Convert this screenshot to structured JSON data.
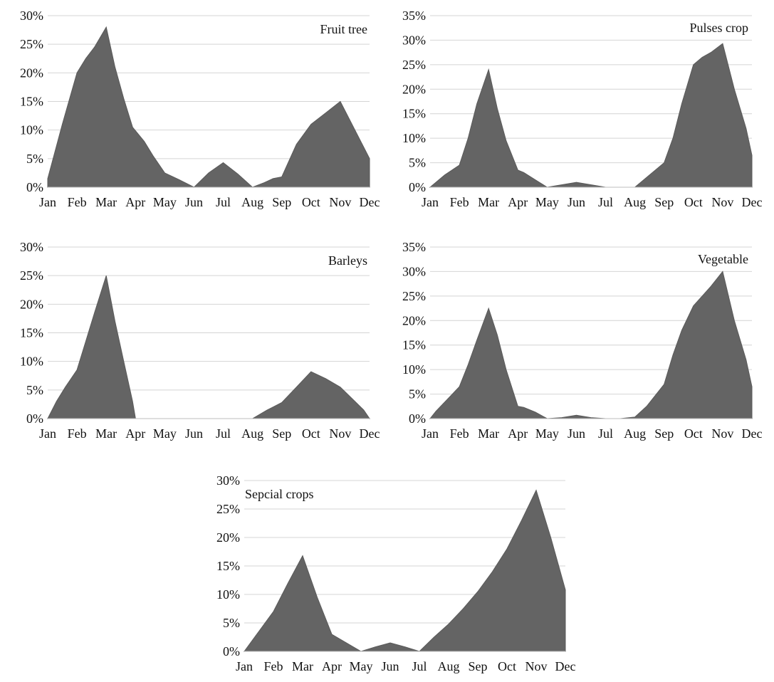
{
  "chart_data": [
    {
      "type": "area",
      "title": "Fruit tree",
      "xlabel": "",
      "ylabel": "",
      "ylim": [
        0,
        30
      ],
      "yticks": [
        "0%",
        "5%",
        "10%",
        "15%",
        "20%",
        "25%",
        "30%"
      ],
      "categories": [
        "Jan",
        "Feb",
        "Mar",
        "Apr",
        "May",
        "Jun",
        "Jul",
        "Aug",
        "Sep",
        "Oct",
        "Nov",
        "Dec"
      ],
      "x": [
        0,
        0.5,
        1,
        1.3,
        1.6,
        2,
        2.3,
        2.6,
        2.9,
        3.3,
        3.6,
        4,
        4.5,
        5,
        5.5,
        6,
        6.5,
        7,
        7.4,
        7.7,
        8,
        8.5,
        9,
        9.5,
        10,
        10.5,
        11
      ],
      "values": [
        1.5,
        11,
        20,
        22.5,
        24.5,
        28,
        21,
        15.5,
        10.5,
        8,
        5.5,
        2.5,
        1.3,
        0,
        2.5,
        4.3,
        2.3,
        0,
        0.8,
        1.5,
        1.8,
        7.5,
        11,
        13,
        15,
        10,
        5
      ]
    },
    {
      "type": "area",
      "title": "Pulses crop",
      "xlabel": "",
      "ylabel": "",
      "ylim": [
        0,
        35
      ],
      "yticks": [
        "0%",
        "5%",
        "10%",
        "15%",
        "20%",
        "25%",
        "30%",
        "35%"
      ],
      "categories": [
        "Jan",
        "Feb",
        "Mar",
        "Apr",
        "May",
        "Jun",
        "Jul",
        "Aug",
        "Sep",
        "Oct",
        "Nov",
        "Dec"
      ],
      "x": [
        0,
        0.5,
        1,
        1.3,
        1.6,
        2,
        2.3,
        2.6,
        3,
        3.2,
        3.6,
        4,
        5,
        6,
        7,
        7.5,
        8,
        8.3,
        8.6,
        9,
        9.3,
        9.6,
        10,
        10.4,
        10.8,
        11
      ],
      "values": [
        0,
        2.5,
        4.5,
        10,
        17,
        24,
        16,
        9.5,
        3.5,
        3,
        1.5,
        0,
        1,
        0,
        0,
        2.5,
        5,
        10,
        17,
        25,
        26.5,
        27.5,
        29.3,
        20,
        12,
        6.5
      ]
    },
    {
      "type": "area",
      "title": "Barleys",
      "xlabel": "",
      "ylabel": "",
      "ylim": [
        0,
        30
      ],
      "yticks": [
        "0%",
        "5%",
        "10%",
        "15%",
        "20%",
        "25%",
        "30%"
      ],
      "categories": [
        "Jan",
        "Feb",
        "Mar",
        "Apr",
        "May",
        "Jun",
        "Jul",
        "Aug",
        "Sep",
        "Oct",
        "Nov",
        "Dec"
      ],
      "x": [
        0,
        0.3,
        0.6,
        1,
        1.3,
        1.6,
        2,
        2.3,
        2.6,
        2.9,
        3,
        4,
        5,
        6,
        7,
        7.5,
        8,
        8.5,
        9,
        9.5,
        10,
        10.5,
        10.8,
        11
      ],
      "values": [
        0,
        3,
        5.5,
        8.5,
        13.5,
        18.5,
        25,
        17,
        10,
        3,
        0,
        0,
        0,
        0,
        0,
        1.5,
        2.8,
        5.5,
        8.2,
        7,
        5.5,
        3,
        1.5,
        0
      ]
    },
    {
      "type": "area",
      "title": "Vegetable",
      "xlabel": "",
      "ylabel": "",
      "ylim": [
        0,
        35
      ],
      "yticks": [
        "0%",
        "5%",
        "10%",
        "15%",
        "20%",
        "25%",
        "30%",
        "35%"
      ],
      "categories": [
        "Jan",
        "Feb",
        "Mar",
        "Apr",
        "May",
        "Jun",
        "Jul",
        "Aug",
        "Sep",
        "Oct",
        "Nov",
        "Dec"
      ],
      "x": [
        0,
        0.2,
        0.6,
        1,
        1.3,
        1.6,
        2,
        2.3,
        2.6,
        3,
        3.2,
        3.6,
        4,
        4.5,
        5,
        5.5,
        6,
        6.5,
        7,
        7.4,
        8,
        8.3,
        8.6,
        9,
        9.3,
        9.6,
        10,
        10.4,
        10.8,
        11
      ],
      "values": [
        0,
        1.5,
        4,
        6.5,
        11,
        16,
        22.5,
        17,
        10,
        2.5,
        2.3,
        1.3,
        0,
        0.2,
        0.7,
        0.2,
        0,
        0,
        0.3,
        2.5,
        7,
        13,
        18,
        23,
        25,
        27,
        30,
        20,
        12,
        6.5
      ]
    },
    {
      "type": "area",
      "title": "Sepcial crops",
      "xlabel": "",
      "ylabel": "",
      "ylim": [
        0,
        30
      ],
      "yticks": [
        "0%",
        "5%",
        "10%",
        "15%",
        "20%",
        "25%",
        "30%"
      ],
      "categories": [
        "Jan",
        "Feb",
        "Mar",
        "Apr",
        "May",
        "Jun",
        "Jul",
        "Aug",
        "Sep",
        "Oct",
        "Nov",
        "Dec"
      ],
      "x": [
        0,
        0.5,
        1,
        1.5,
        2,
        2.5,
        3,
        3.5,
        4,
        4.5,
        5,
        5.5,
        6,
        6.5,
        7,
        7.5,
        8,
        8.5,
        9,
        9.5,
        10,
        10.5,
        11
      ],
      "values": [
        0,
        3.5,
        7,
        12,
        16.8,
        9.5,
        3,
        1.5,
        0,
        0.8,
        1.5,
        0.8,
        0,
        2.5,
        4.8,
        7.5,
        10.5,
        14,
        18,
        23,
        28.3,
        20,
        10.8
      ]
    }
  ]
}
